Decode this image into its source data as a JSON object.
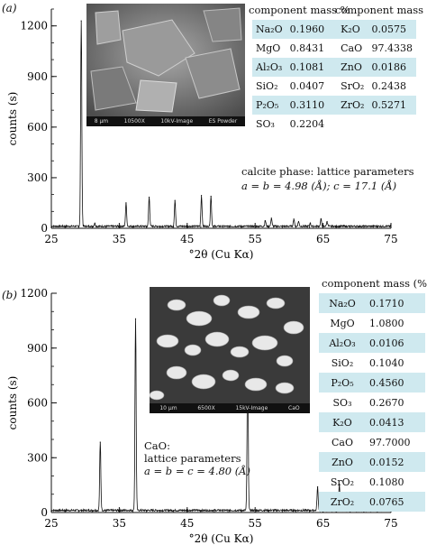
{
  "chart_data": [
    {
      "panel_label": "(a)",
      "type": "line",
      "xlabel": "°2θ (Cu Kα)",
      "ylabel": "counts (s)",
      "xlim": [
        25,
        75
      ],
      "ylim": [
        0,
        1300
      ],
      "xticks": [
        25,
        35,
        45,
        55,
        65,
        75
      ],
      "yticks": [
        0,
        300,
        600,
        900,
        1200
      ],
      "peaks": [
        {
          "x": 29.4,
          "y": 1230
        },
        {
          "x": 31.4,
          "y": 30
        },
        {
          "x": 36.0,
          "y": 150
        },
        {
          "x": 39.4,
          "y": 185
        },
        {
          "x": 43.2,
          "y": 165
        },
        {
          "x": 47.1,
          "y": 195
        },
        {
          "x": 48.5,
          "y": 190
        },
        {
          "x": 56.5,
          "y": 45
        },
        {
          "x": 57.4,
          "y": 60
        },
        {
          "x": 60.7,
          "y": 55
        },
        {
          "x": 61.4,
          "y": 40
        },
        {
          "x": 63.1,
          "y": 30
        },
        {
          "x": 64.7,
          "y": 55
        },
        {
          "x": 65.6,
          "y": 40
        }
      ],
      "annotation": [
        "calcite phase: lattice parameters",
        "a = b = 4.98 (Å); c = 17.1 (Å)"
      ],
      "sem_caption": [
        "8 µm",
        "10500X",
        "10kV-Image",
        "ES Powder"
      ],
      "table_headers": [
        "component mass %",
        "component mass %"
      ],
      "table_rows": [
        [
          "Na₂O",
          "0.1960",
          "K₂O",
          "0.0575"
        ],
        [
          "MgO",
          "0.8431",
          "CaO",
          "97.4338"
        ],
        [
          "Al₂O₃",
          "0.1081",
          "ZnO",
          "0.0186"
        ],
        [
          "SiO₂",
          "0.0407",
          "SrO₂",
          "0.2438"
        ],
        [
          "P₂O₅",
          "0.3110",
          "ZrO₂",
          "0.5271"
        ],
        [
          "SO₃",
          "0.2204",
          "",
          ""
        ]
      ]
    },
    {
      "panel_label": "(b)",
      "type": "line",
      "xlabel": "°2θ (Cu Kα)",
      "ylabel": "counts (s)",
      "xlim": [
        25,
        75
      ],
      "ylim": [
        0,
        1200
      ],
      "xticks": [
        25,
        35,
        45,
        55,
        65,
        75
      ],
      "yticks": [
        0,
        300,
        600,
        900,
        1200
      ],
      "peaks": [
        {
          "x": 32.2,
          "y": 385
        },
        {
          "x": 37.4,
          "y": 1060
        },
        {
          "x": 53.9,
          "y": 845
        },
        {
          "x": 64.2,
          "y": 140
        },
        {
          "x": 67.4,
          "y": 155
        }
      ],
      "annotation": [
        "CaO:",
        "lattice parameters",
        "a = b = c = 4.80 (Å)"
      ],
      "sem_caption": [
        "10 µm",
        "6500X",
        "15kV-Image",
        "CaO"
      ],
      "table_header": "component mass (%)",
      "table_rows": [
        [
          "Na₂O",
          "0.1710"
        ],
        [
          "MgO",
          "1.0800"
        ],
        [
          "Al₂O₃",
          "0.0106"
        ],
        [
          "SiO₂",
          "0.1040"
        ],
        [
          "P₂O₅",
          "0.4560"
        ],
        [
          "SO₃",
          "0.2670"
        ],
        [
          "K₂O",
          "0.0413"
        ],
        [
          "CaO",
          "97.7000"
        ],
        [
          "ZnO",
          "0.0152"
        ],
        [
          "SrO₂",
          "0.1080"
        ],
        [
          "ZrO₂",
          "0.0765"
        ]
      ]
    }
  ]
}
